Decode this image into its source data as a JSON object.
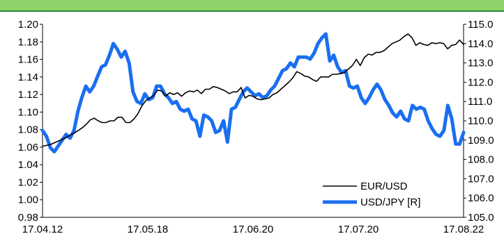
{
  "chart_data": {
    "type": "line",
    "x_ticks": [
      "17.04.12",
      "17.05.18",
      "17.06.20",
      "17.07.20",
      "17.08.22"
    ],
    "y_left": {
      "min": 0.98,
      "max": 1.2,
      "ticks": [
        "1.20",
        "1.18",
        "1.16",
        "1.14",
        "1.12",
        "1.10",
        "1.08",
        "1.06",
        "1.04",
        "1.02",
        "1.00",
        "0.98"
      ]
    },
    "y_right": {
      "min": 105.0,
      "max": 115.0,
      "ticks": [
        "115.0",
        "114.0",
        "113.0",
        "112.0",
        "111.0",
        "110.0",
        "109.0",
        "108.0",
        "107.0",
        "106.0",
        "105.0"
      ]
    },
    "series": [
      {
        "name": "EUR/USD",
        "axis": "left",
        "color": "#000000",
        "values": [
          1.061,
          1.062,
          1.063,
          1.065,
          1.067,
          1.069,
          1.071,
          1.074,
          1.076,
          1.079,
          1.082,
          1.086,
          1.091,
          1.093,
          1.09,
          1.088,
          1.088,
          1.09,
          1.09,
          1.094,
          1.094,
          1.088,
          1.088,
          1.092,
          1.098,
          1.107,
          1.113,
          1.116,
          1.119,
          1.125,
          1.124,
          1.118,
          1.122,
          1.12,
          1.122,
          1.118,
          1.122,
          1.124,
          1.123,
          1.125,
          1.121,
          1.126,
          1.126,
          1.129,
          1.128,
          1.126,
          1.124,
          1.121,
          1.123,
          1.123,
          1.128,
          1.116,
          1.119,
          1.118,
          1.115,
          1.114,
          1.115,
          1.116,
          1.12,
          1.122,
          1.126,
          1.13,
          1.134,
          1.139,
          1.146,
          1.144,
          1.141,
          1.14,
          1.137,
          1.135,
          1.14,
          1.14,
          1.14,
          1.143,
          1.143,
          1.144,
          1.145,
          1.149,
          1.153,
          1.16,
          1.153,
          1.162,
          1.166,
          1.165,
          1.168,
          1.168,
          1.17,
          1.174,
          1.178,
          1.18,
          1.182,
          1.186,
          1.189,
          1.185,
          1.176,
          1.179,
          1.177,
          1.176,
          1.179,
          1.178,
          1.179,
          1.178,
          1.172,
          1.176,
          1.177,
          1.182,
          1.177
        ]
      },
      {
        "name": "USD/JPY [R]",
        "axis": "right",
        "color": "#1a6ff0",
        "values": [
          109.5,
          109.2,
          108.6,
          108.4,
          108.7,
          109.0,
          109.3,
          109.1,
          109.5,
          110.5,
          111.2,
          111.8,
          111.5,
          111.8,
          112.3,
          112.8,
          112.9,
          113.4,
          114.0,
          113.7,
          113.3,
          113.6,
          113.0,
          111.5,
          111.0,
          110.9,
          111.4,
          111.1,
          111.2,
          111.8,
          111.8,
          111.4,
          111.2,
          110.9,
          111.0,
          110.6,
          110.5,
          110.6,
          110.1,
          110.0,
          109.2,
          110.3,
          110.2,
          110.0,
          109.4,
          109.5,
          110.0,
          108.9,
          110.6,
          110.7,
          111.1,
          111.5,
          111.7,
          111.5,
          111.3,
          111.4,
          111.2,
          111.3,
          111.6,
          111.8,
          112.2,
          112.6,
          112.7,
          113.0,
          112.8,
          113.3,
          113.3,
          113.3,
          113.2,
          113.5,
          114.0,
          114.3,
          114.5,
          113.1,
          113.4,
          112.8,
          112.5,
          112.6,
          111.8,
          111.7,
          111.8,
          111.2,
          110.9,
          111.2,
          111.6,
          111.9,
          111.6,
          111.1,
          110.8,
          110.4,
          110.2,
          110.5,
          110.1,
          110.0,
          110.8,
          110.6,
          110.7,
          110.6,
          110.0,
          109.6,
          109.3,
          109.2,
          109.5,
          110.8,
          110.1,
          108.8,
          108.8,
          109.4
        ]
      }
    ],
    "legend_position": "bottom-right"
  }
}
